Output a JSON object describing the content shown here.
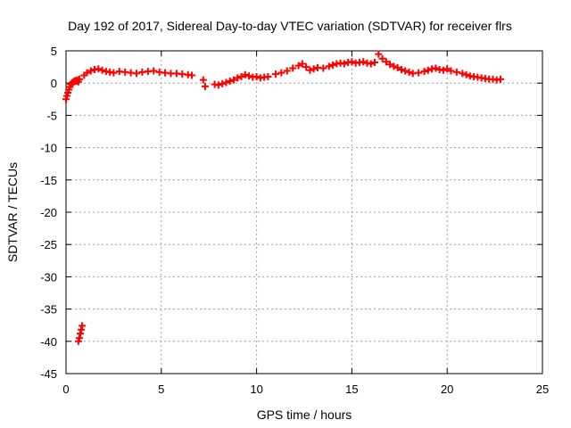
{
  "chart_data": {
    "type": "scatter",
    "title": "Day 192 of 2017, Sidereal Day-to-day VTEC variation (SDTVAR) for receiver flrs",
    "xlabel": "GPS time / hours",
    "ylabel": "SDTVAR / TECUs",
    "xlim": [
      0,
      25
    ],
    "ylim": [
      -45,
      5
    ],
    "xticks": [
      0,
      5,
      10,
      15,
      20,
      25
    ],
    "yticks": [
      5,
      0,
      -5,
      -10,
      -15,
      -20,
      -25,
      -30,
      -35,
      -40,
      -45
    ],
    "grid": true,
    "marker": "plus",
    "color": "#ff0000",
    "series": [
      {
        "x": [
          0.0,
          0.05,
          0.1,
          0.15,
          0.2,
          0.25,
          0.3,
          0.35,
          0.4,
          0.45,
          0.5,
          0.55,
          0.6,
          0.65,
          0.7,
          0.95,
          1.1,
          1.3,
          1.5,
          1.7,
          1.9,
          2.1,
          2.3,
          2.5,
          2.8,
          3.1,
          3.4,
          3.7,
          4.0,
          4.3,
          4.6,
          4.9,
          5.2,
          5.5,
          5.8,
          6.1,
          6.4,
          6.6,
          7.2,
          7.3,
          7.8,
          8.0,
          8.2,
          8.4,
          8.6,
          8.8,
          9.0,
          9.2,
          9.4,
          9.6,
          9.8,
          10.0,
          10.2,
          10.4,
          10.6,
          11.0,
          11.3,
          11.6,
          11.9,
          12.2,
          12.4,
          12.6,
          12.8,
          13.0,
          13.2,
          13.5,
          13.8,
          14.0,
          14.2,
          14.4,
          14.6,
          14.8,
          15.0,
          15.2,
          15.4,
          15.6,
          15.8,
          16.0,
          16.2,
          16.4,
          16.6,
          16.8,
          17.0,
          17.2,
          17.4,
          17.6,
          17.8,
          18.0,
          18.2,
          18.5,
          18.8,
          19.0,
          19.2,
          19.4,
          19.6,
          19.8,
          20.0,
          20.2,
          20.5,
          20.8,
          21.0,
          21.2,
          21.4,
          21.6,
          21.8,
          22.0,
          22.2,
          22.4,
          22.6,
          22.8
        ],
        "y": [
          -2.5,
          -2.0,
          -1.5,
          -1.0,
          -0.6,
          -0.2,
          0.0,
          0.1,
          0.2,
          0.3,
          0.4,
          0.3,
          0.5,
          0.2,
          0.6,
          1.2,
          1.6,
          1.9,
          2.1,
          2.2,
          2.0,
          1.8,
          1.7,
          1.6,
          1.8,
          1.7,
          1.6,
          1.5,
          1.7,
          1.8,
          1.9,
          1.7,
          1.6,
          1.5,
          1.5,
          1.4,
          1.3,
          1.2,
          0.5,
          -0.5,
          -0.2,
          -0.3,
          -0.1,
          0.1,
          0.3,
          0.5,
          0.8,
          1.0,
          1.3,
          1.1,
          0.9,
          1.0,
          0.8,
          0.9,
          1.0,
          1.4,
          1.6,
          1.9,
          2.3,
          2.7,
          3.0,
          2.5,
          2.0,
          2.2,
          2.4,
          2.3,
          2.6,
          2.8,
          3.0,
          3.1,
          3.0,
          3.2,
          3.3,
          3.1,
          3.2,
          3.3,
          3.1,
          3.0,
          3.2,
          4.5,
          3.8,
          3.3,
          2.9,
          2.6,
          2.4,
          2.1,
          1.9,
          1.7,
          1.5,
          1.6,
          1.8,
          2.0,
          2.2,
          2.3,
          2.1,
          2.0,
          2.2,
          1.9,
          1.7,
          1.5,
          1.3,
          1.1,
          1.0,
          0.9,
          0.8,
          0.7,
          0.6,
          0.6,
          0.5,
          0.6
        ]
      },
      {
        "x": [
          0.65,
          0.7,
          0.75,
          0.8,
          0.85
        ],
        "y": [
          -40.0,
          -39.5,
          -38.8,
          -38.2,
          -37.6
        ]
      }
    ]
  }
}
